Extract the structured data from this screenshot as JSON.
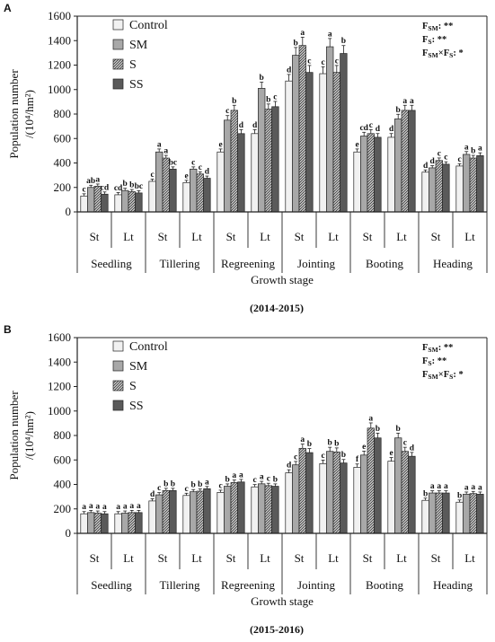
{
  "chart_data": [
    {
      "panel_letter": "A",
      "caption": "(2014-2015)",
      "type": "bar",
      "ylabel_line1": "Population number",
      "ylabel_line2": "/(10⁴/hm²)",
      "xlabel": "Growth stage",
      "ylim": [
        0,
        1600
      ],
      "yticks": [
        0,
        200,
        400,
        600,
        800,
        1000,
        1200,
        1400,
        1600
      ],
      "stages": [
        "Seedling",
        "Tillering",
        "Regreening",
        "Jointing",
        "Booting",
        "Heading"
      ],
      "subgroups": [
        "St",
        "Lt"
      ],
      "series_names": [
        "Control",
        "SM",
        "S",
        "SS"
      ],
      "values": [
        [
          130,
          200,
          210,
          145
        ],
        [
          140,
          175,
          165,
          155
        ],
        [
          250,
          490,
          440,
          350
        ],
        [
          240,
          350,
          310,
          275
        ],
        [
          490,
          750,
          830,
          640
        ],
        [
          640,
          1010,
          840,
          860
        ],
        [
          1070,
          1280,
          1360,
          1140
        ],
        [
          1130,
          1350,
          1140,
          1295
        ],
        [
          490,
          620,
          640,
          610
        ],
        [
          610,
          760,
          830,
          830
        ],
        [
          325,
          360,
          420,
          390
        ],
        [
          375,
          470,
          440,
          460
        ]
      ],
      "letters": [
        [
          "c",
          "ab",
          "a",
          "cd"
        ],
        [
          "cd",
          "b",
          "b",
          "bc"
        ],
        [
          "c",
          "a",
          "a",
          "bc"
        ],
        [
          "e",
          "c",
          "c",
          "d"
        ],
        [
          "e",
          "c",
          "b",
          "d"
        ],
        [
          "d",
          "b",
          "b",
          "c"
        ],
        [
          "d",
          "b",
          "a",
          "c"
        ],
        [
          "c",
          "a",
          "c",
          "b"
        ],
        [
          "e",
          "cd",
          "c",
          "d"
        ],
        [
          "d",
          "b",
          "a",
          "a"
        ],
        [
          "d",
          "d",
          "c",
          "c"
        ],
        [
          "c",
          "a",
          "b",
          "a"
        ]
      ],
      "significance": [
        "F_SM: **",
        "F_S: **",
        "F_SM×F_S: *"
      ]
    },
    {
      "panel_letter": "B",
      "caption": "(2015-2016)",
      "type": "bar",
      "ylabel_line1": "Population number",
      "ylabel_line2": "/(10⁴/hm²)",
      "xlabel": "Growth stage",
      "ylim": [
        0,
        1600
      ],
      "yticks": [
        0,
        200,
        400,
        600,
        800,
        1000,
        1200,
        1400,
        1600
      ],
      "stages": [
        "Seedling",
        "Tillering",
        "Regreening",
        "Jointing",
        "Booting",
        "Heading"
      ],
      "subgroups": [
        "St",
        "Lt"
      ],
      "series_names": [
        "Control",
        "SM",
        "S",
        "SS"
      ],
      "values": [
        [
          160,
          170,
          165,
          160
        ],
        [
          160,
          165,
          170,
          170
        ],
        [
          265,
          315,
          350,
          350
        ],
        [
          310,
          340,
          345,
          365
        ],
        [
          335,
          385,
          415,
          420
        ],
        [
          380,
          405,
          390,
          385
        ],
        [
          495,
          560,
          695,
          660
        ],
        [
          570,
          670,
          665,
          575
        ],
        [
          540,
          640,
          860,
          780
        ],
        [
          590,
          780,
          670,
          630
        ],
        [
          270,
          330,
          330,
          330
        ],
        [
          255,
          320,
          325,
          320
        ]
      ],
      "letters": [
        [
          "a",
          "a",
          "a",
          "a"
        ],
        [
          "a",
          "a",
          "a",
          "a"
        ],
        [
          "d",
          "c",
          "b",
          "b"
        ],
        [
          "c",
          "b",
          "b",
          "a"
        ],
        [
          "c",
          "b",
          "a",
          "a"
        ],
        [
          "c",
          "a",
          "c",
          "b"
        ],
        [
          "d",
          "c",
          "a",
          "b"
        ],
        [
          "c",
          "b",
          "b",
          "b"
        ],
        [
          "f",
          "e",
          "a",
          "b"
        ],
        [
          "e",
          "b",
          "c",
          "d"
        ],
        [
          "b",
          "a",
          "a",
          "a"
        ],
        [
          "b",
          "a",
          "a",
          "a"
        ]
      ],
      "significance": [
        "F_SM: **",
        "F_S: **",
        "F_SM×F_S: *"
      ]
    }
  ]
}
